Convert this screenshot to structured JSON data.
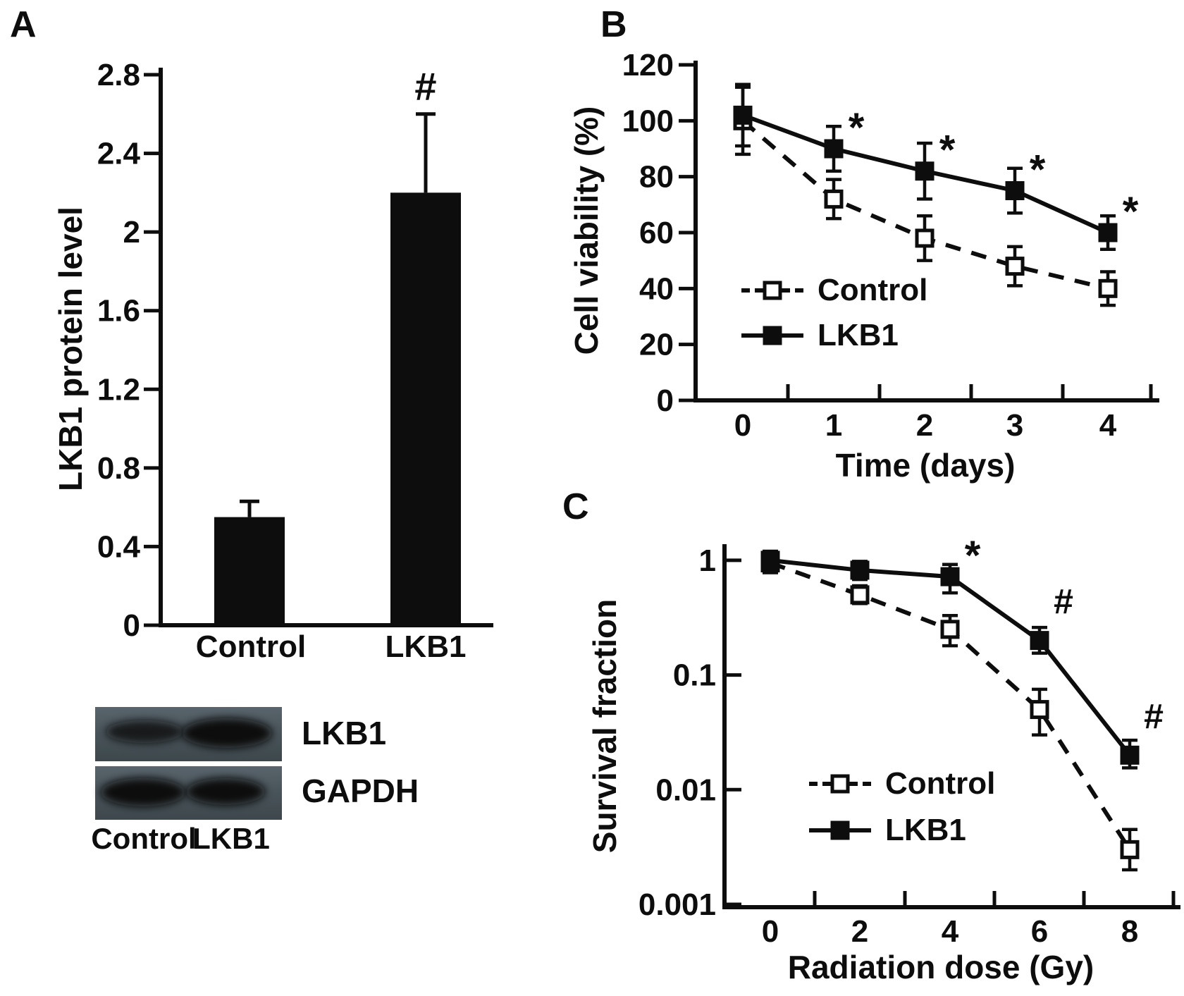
{
  "panels": {
    "a": {
      "label": "A"
    },
    "b": {
      "label": "B"
    },
    "c": {
      "label": "C"
    }
  },
  "colors": {
    "foreground": "#0d0d0d",
    "background": "#ffffff",
    "blot_strip": "#4a555b",
    "blot_band": "#0a0d0e"
  },
  "chart_data": [
    {
      "id": "A",
      "type": "bar",
      "categories": [
        "Control",
        "LKB1"
      ],
      "values": [
        0.55,
        2.2
      ],
      "errors_upper": [
        0.08,
        0.4
      ],
      "ylabel": "LKB1 protein level",
      "xlabel": "",
      "ylim": [
        0,
        2.8
      ],
      "yticks": [
        0,
        0.4,
        0.8,
        1.2,
        1.6,
        2,
        2.4,
        2.8
      ],
      "ytick_labels": [
        "0",
        "0.4",
        "0.8",
        "1.2",
        "1.6",
        "2",
        "2.4",
        "2.8"
      ],
      "grid": false,
      "bar_color": "#0d0d0d",
      "annotations": [
        {
          "text": "#",
          "category_index": 1
        }
      ]
    },
    {
      "id": "B",
      "type": "line",
      "x": [
        0,
        1,
        2,
        3,
        4
      ],
      "xtick_labels": [
        "0",
        "1",
        "2",
        "3",
        "4"
      ],
      "xlabel": "Time (days)",
      "ylabel": "Cell viability (%)",
      "ylim": [
        0,
        120
      ],
      "yticks": [
        0,
        20,
        40,
        60,
        80,
        100,
        120
      ],
      "ytick_labels": [
        "0",
        "20",
        "40",
        "60",
        "80",
        "100",
        "120"
      ],
      "grid": false,
      "legend_position": "inside-lower-left",
      "series": [
        {
          "name": "Control",
          "line": "dashed",
          "marker": "open-square",
          "values": [
            100,
            72,
            58,
            48,
            40
          ],
          "errors": [
            12,
            7,
            8,
            7,
            6
          ]
        },
        {
          "name": "LKB1",
          "line": "solid",
          "marker": "filled-square",
          "values": [
            102,
            90,
            82,
            75,
            60
          ],
          "errors": [
            11,
            8,
            10,
            8,
            6
          ]
        }
      ],
      "annotations": [
        {
          "text": "*",
          "series": "LKB1",
          "x_index": 1
        },
        {
          "text": "*",
          "series": "LKB1",
          "x_index": 2
        },
        {
          "text": "*",
          "series": "LKB1",
          "x_index": 3
        },
        {
          "text": "*",
          "series": "LKB1",
          "x_index": 4
        }
      ]
    },
    {
      "id": "C",
      "type": "line",
      "x": [
        0,
        2,
        4,
        6,
        8
      ],
      "xtick_labels": [
        "0",
        "2",
        "4",
        "6",
        "8"
      ],
      "xlabel": "Radiation dose (Gy)",
      "ylabel": "Survival fraction",
      "yscale": "log",
      "ylim": [
        0.001,
        1
      ],
      "yticks": [
        1,
        0.1,
        0.01,
        0.001
      ],
      "ytick_labels": [
        "1",
        "0.1",
        "0.01",
        "0.001"
      ],
      "grid": false,
      "legend_position": "inside-lower-left",
      "series": [
        {
          "name": "Control",
          "line": "dashed",
          "marker": "open-square",
          "values": [
            0.95,
            0.5,
            0.25,
            0.05,
            0.003
          ],
          "errors_lower": [
            0.8,
            0.42,
            0.18,
            0.03,
            0.002
          ],
          "errors_upper": [
            1.15,
            0.6,
            0.33,
            0.075,
            0.0045
          ]
        },
        {
          "name": "LKB1",
          "line": "solid",
          "marker": "filled-square",
          "values": [
            1.0,
            0.82,
            0.72,
            0.2,
            0.02
          ],
          "errors_lower": [
            0.78,
            0.68,
            0.52,
            0.155,
            0.0155
          ],
          "errors_upper": [
            1.2,
            0.98,
            0.92,
            0.26,
            0.027
          ]
        }
      ],
      "annotations": [
        {
          "text": "*",
          "series": "LKB1",
          "x_index": 2
        },
        {
          "text": "#",
          "series": "LKB1",
          "x_index": 3
        },
        {
          "text": "#",
          "series": "LKB1",
          "x_index": 4
        }
      ]
    }
  ],
  "blot": {
    "row_labels": [
      "LKB1",
      "GAPDH"
    ],
    "lane_labels": [
      "Control",
      "LKB1"
    ],
    "band_intensities": [
      [
        "medium",
        "strong"
      ],
      [
        "strong",
        "strong"
      ]
    ]
  }
}
